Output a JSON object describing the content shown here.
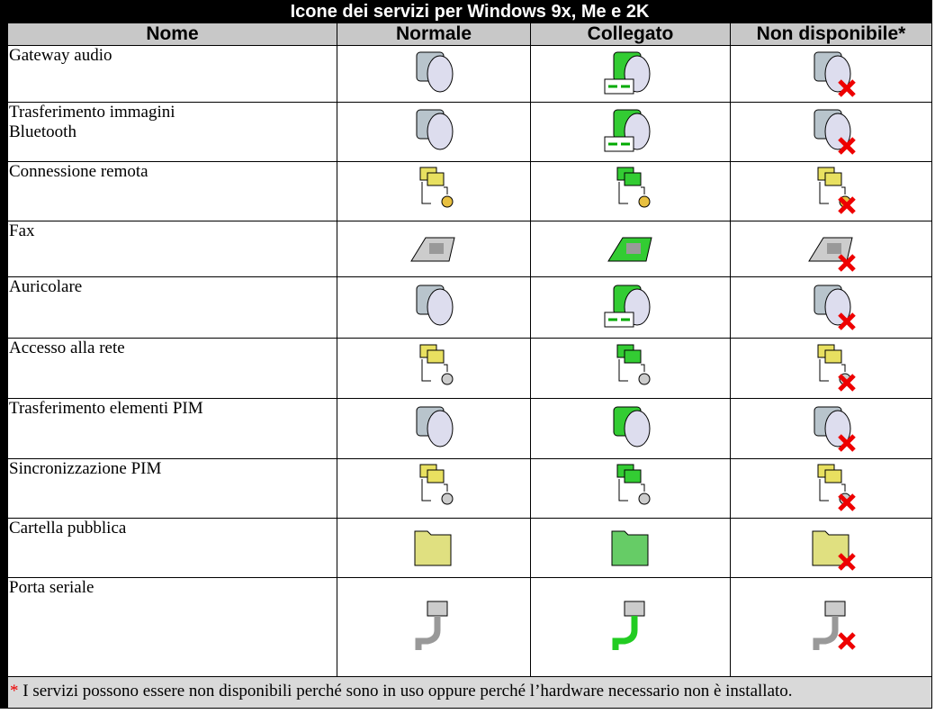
{
  "table": {
    "title": "Icone dei servizi per Windows 9x, Me e 2K",
    "headers": [
      "Nome",
      "Normale",
      "Collegato",
      "Non disponibile*"
    ],
    "rows": [
      "Gateway audio",
      "Trasferimento immagini\nBluetooth",
      "Connessione remota",
      "Fax",
      "Auricolare",
      "Accesso alla rete",
      "Trasferimento elementi PIM",
      "Sincronizzazione PIM",
      "Cartella pubblica",
      "Porta seriale"
    ],
    "footnote": {
      "marker": "*",
      "text": " I servizi possono essere non disponibili perché sono in uso oppure perché l’hardware necessario non è installato."
    }
  }
}
